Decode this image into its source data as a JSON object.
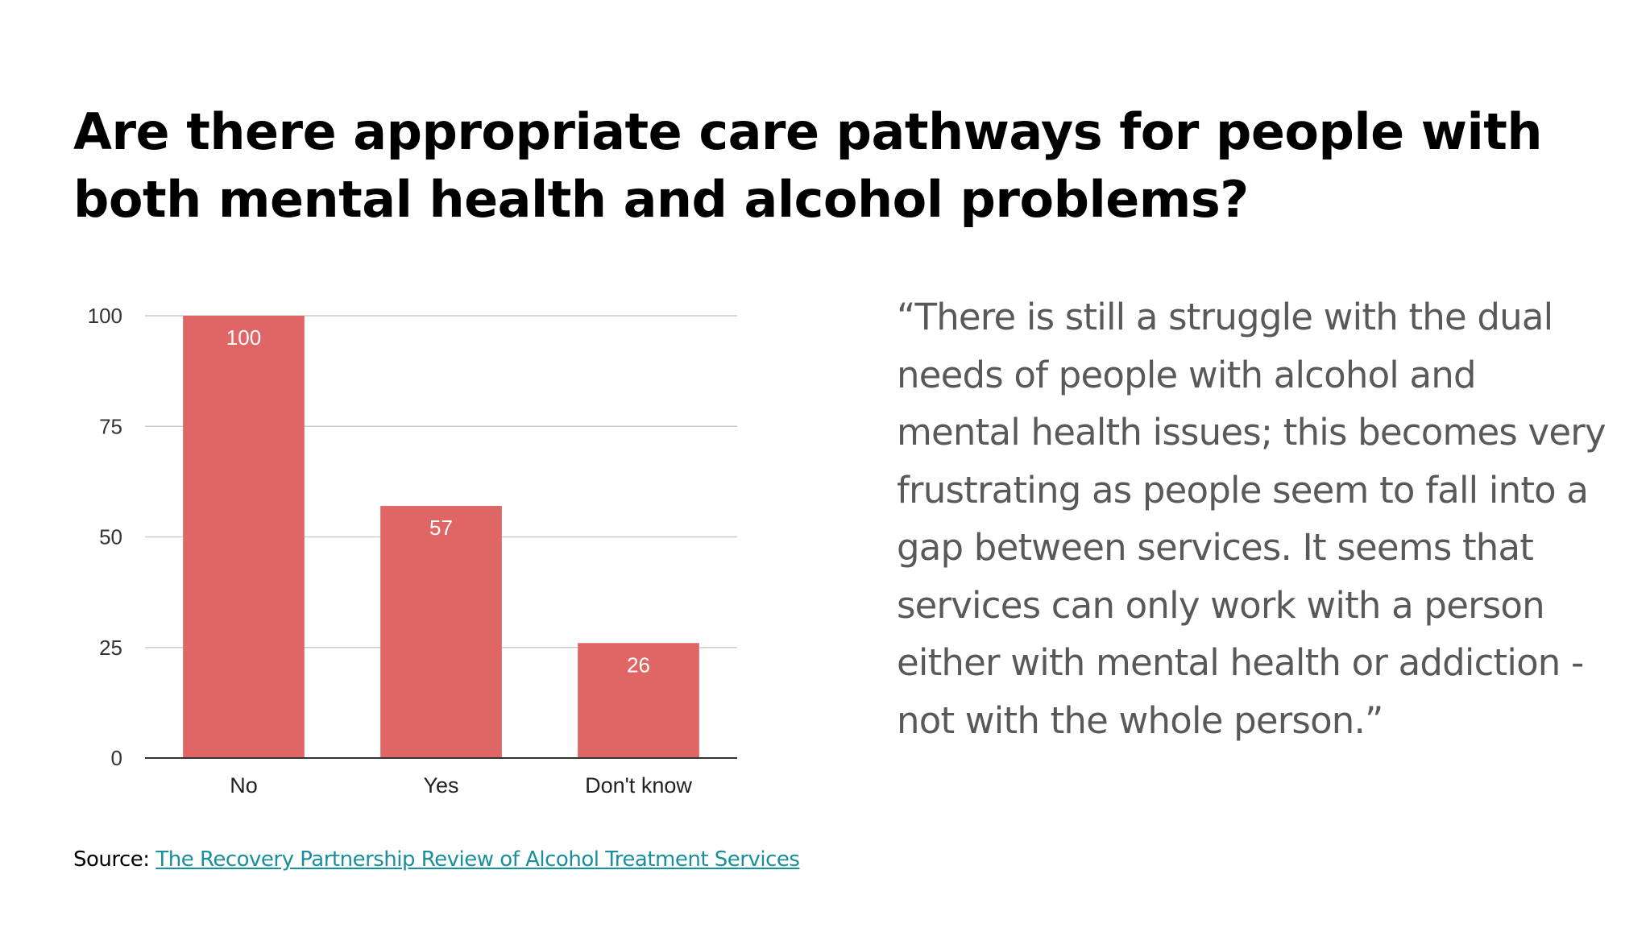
{
  "title": "Are there appropriate care pathways for people with both mental health and alcohol problems?",
  "quote": "“There is still a struggle with the dual needs of people with alcohol and mental health issues; this becomes very frustrating as people seem to fall into a gap between services. It seems that services can only work with a person either with mental health or addiction - not with the whole person.”",
  "source": {
    "prefix": "Source: ",
    "link_text": "The Recovery Partnership Review of Alcohol Treatment Services"
  },
  "colors": {
    "bar": "#e06666",
    "grid": "#cccccc",
    "axis": "#333333",
    "link": "#1a8f9c",
    "quote_text": "#595959"
  },
  "chart_data": {
    "type": "bar",
    "categories": [
      "No",
      "Yes",
      "Don't know"
    ],
    "values": [
      100,
      57,
      26
    ],
    "data_labels": [
      "100",
      "57",
      "26"
    ],
    "y_ticks": [
      0,
      25,
      50,
      75,
      100
    ],
    "ylim": [
      0,
      100
    ],
    "grid": true,
    "legend": "none"
  }
}
